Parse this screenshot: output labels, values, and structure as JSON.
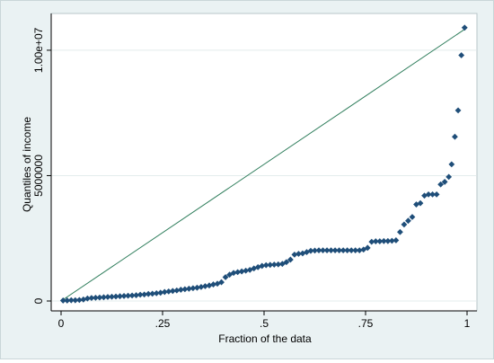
{
  "chart_data": {
    "type": "scatter",
    "title": "",
    "xlabel": "Fraction of the data",
    "ylabel": "Quantiles of income",
    "xlim": [
      0,
      1
    ],
    "ylim": [
      0,
      11000000
    ],
    "xticks": [
      0,
      0.25,
      0.5,
      0.75,
      1
    ],
    "xtick_labels": [
      "0",
      ".25",
      ".5",
      ".75",
      "1"
    ],
    "yticks": [
      0,
      5000000,
      10000000
    ],
    "ytick_labels": [
      "0",
      "5000000",
      "1.00e+07"
    ],
    "grid": "horizontal",
    "colors": {
      "marker": "#1f4e79",
      "reference_line": "#2e7d5b",
      "plot_bg": "#ffffff",
      "outer_bg": "#eaf2f3",
      "grid": "#e3ecec"
    },
    "reference_line": {
      "from": [
        0,
        0
      ],
      "to": [
        1,
        10900000
      ]
    },
    "series": [
      {
        "x": [
          0.005,
          0.015,
          0.025,
          0.035,
          0.045,
          0.055,
          0.065,
          0.075,
          0.085,
          0.095,
          0.105,
          0.115,
          0.125,
          0.135,
          0.145,
          0.155,
          0.165,
          0.175,
          0.185,
          0.195,
          0.205,
          0.215,
          0.225,
          0.235,
          0.245,
          0.255,
          0.265,
          0.275,
          0.285,
          0.295,
          0.305,
          0.315,
          0.325,
          0.335,
          0.345,
          0.355,
          0.365,
          0.375,
          0.385,
          0.395,
          0.405,
          0.415,
          0.425,
          0.435,
          0.445,
          0.455,
          0.465,
          0.475,
          0.485,
          0.495,
          0.505,
          0.515,
          0.525,
          0.535,
          0.545,
          0.555,
          0.565,
          0.575,
          0.585,
          0.595,
          0.605,
          0.615,
          0.625,
          0.635,
          0.645,
          0.655,
          0.665,
          0.675,
          0.685,
          0.695,
          0.705,
          0.715,
          0.725,
          0.735,
          0.745,
          0.755,
          0.765,
          0.775,
          0.785,
          0.795,
          0.805,
          0.815,
          0.825,
          0.835,
          0.845,
          0.855,
          0.865,
          0.875,
          0.885,
          0.895,
          0.905,
          0.915,
          0.925,
          0.935,
          0.945,
          0.955,
          0.962,
          0.97,
          0.978,
          0.986,
          0.994
        ],
        "y": [
          20000,
          20000,
          30000,
          30000,
          40000,
          60000,
          100000,
          120000,
          130000,
          140000,
          150000,
          160000,
          170000,
          180000,
          190000,
          200000,
          210000,
          220000,
          230000,
          250000,
          260000,
          280000,
          290000,
          310000,
          330000,
          360000,
          380000,
          400000,
          420000,
          450000,
          470000,
          490000,
          510000,
          530000,
          560000,
          590000,
          620000,
          660000,
          690000,
          750000,
          950000,
          1050000,
          1120000,
          1150000,
          1180000,
          1210000,
          1240000,
          1300000,
          1350000,
          1400000,
          1430000,
          1440000,
          1450000,
          1460000,
          1480000,
          1550000,
          1650000,
          1850000,
          1880000,
          1900000,
          1950000,
          2000000,
          2010000,
          2020000,
          2020000,
          2020000,
          2020000,
          2020000,
          2020000,
          2020000,
          2020000,
          2020000,
          2020000,
          2020000,
          2050000,
          2120000,
          2360000,
          2380000,
          2380000,
          2390000,
          2390000,
          2400000,
          2420000,
          2750000,
          3050000,
          3200000,
          3350000,
          3850000,
          3900000,
          4200000,
          4250000,
          4250000,
          4250000,
          4650000,
          4750000,
          4950000,
          5450000,
          6550000,
          7600000,
          9800000,
          10900000
        ]
      }
    ]
  }
}
